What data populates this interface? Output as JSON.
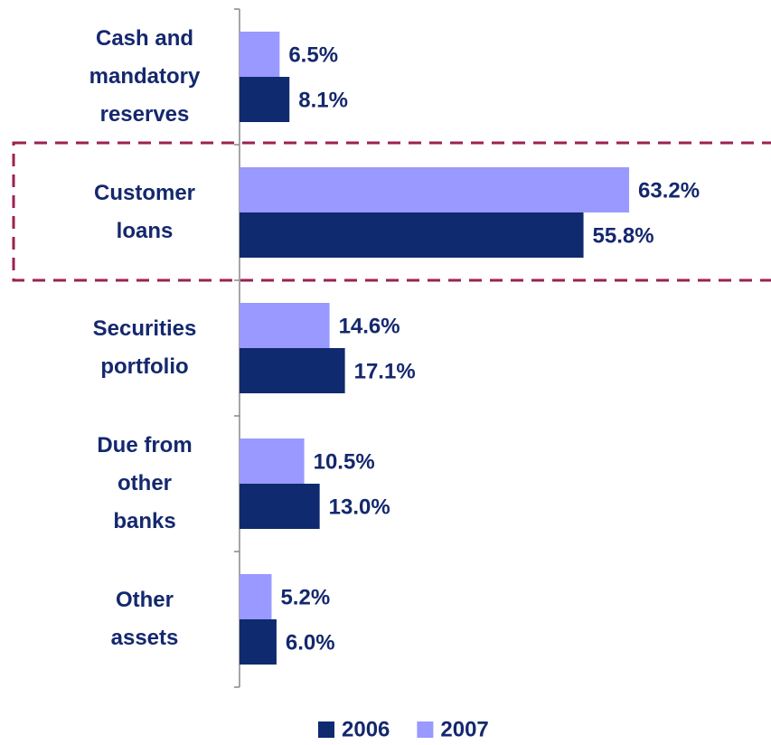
{
  "chart_data": {
    "type": "bar",
    "orientation": "horizontal",
    "categories": [
      "Cash and mandatory reserves",
      "Customer loans",
      "Securities portfolio",
      "Due from other banks",
      "Other assets"
    ],
    "series": [
      {
        "name": "2006",
        "color": "#0f2a6e",
        "values": [
          8.1,
          55.8,
          17.1,
          13.0,
          6.0
        ],
        "value_labels": [
          "8.1%",
          "55.8%",
          "17.1%",
          "13.0%",
          "6.0%"
        ]
      },
      {
        "name": "2007",
        "color": "#9999ff",
        "values": [
          6.5,
          63.2,
          14.6,
          10.5,
          5.2
        ],
        "value_labels": [
          "6.5%",
          "63.2%",
          "14.6%",
          "10.5%",
          "5.2%"
        ]
      }
    ],
    "legend": "bottom"
  }
}
